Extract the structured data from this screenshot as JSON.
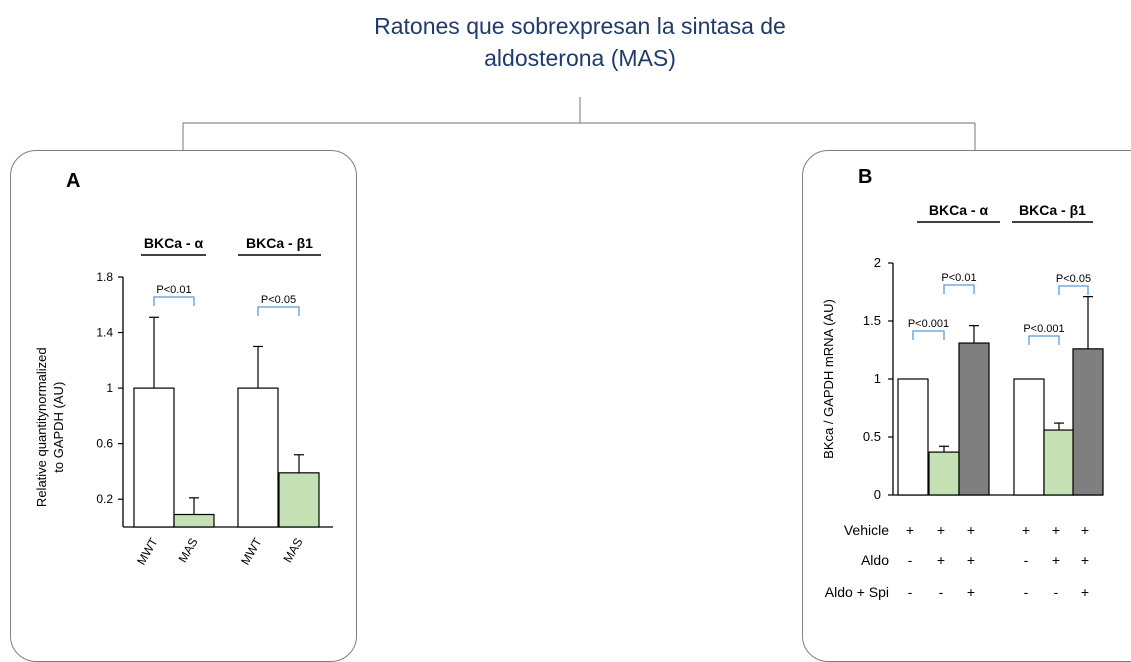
{
  "title_line1": "Ratones que sobrexpresan la sintasa de",
  "title_line2": "aldosterona (MAS)",
  "colors": {
    "title": "#1f3a6b",
    "bracket": "#5b9bd5",
    "green": "#c5e0b4",
    "gray": "#7f7f7f",
    "white": "#ffffff"
  },
  "chart_data": [
    {
      "type": "bar",
      "panel_letter": "A",
      "ylabel_line1": "Relative quantitynormalized",
      "ylabel_line2": "to GAPDH (AU)",
      "ylim": [
        0,
        1.8
      ],
      "yticks": [
        "0.2",
        "0.6",
        "1",
        "1.4",
        "1.8"
      ],
      "groups": [
        "BKCa - α",
        "BKCa - β1"
      ],
      "categories": [
        "MWT",
        "MAS",
        "MWT",
        "MAS"
      ],
      "values": [
        1.0,
        0.09,
        1.0,
        0.39
      ],
      "errors": [
        0.51,
        0.12,
        0.3,
        0.13
      ],
      "fills": [
        "white",
        "green",
        "white",
        "green"
      ],
      "pvalues": [
        "P<0.01",
        "P<0.05"
      ]
    },
    {
      "type": "bar",
      "panel_letter": "B",
      "ylabel": "BKca / GAPDH mRNA (AU)",
      "ylim": [
        0,
        2
      ],
      "yticks": [
        "0",
        "0.5",
        "1",
        "1.5",
        "2"
      ],
      "groups": [
        "BKCa - α",
        "BKCa - β1"
      ],
      "values": [
        1.0,
        0.37,
        1.31,
        1.0,
        0.56,
        1.26
      ],
      "errors": [
        0,
        0.05,
        0.15,
        0,
        0.06,
        0.45
      ],
      "fills": [
        "white",
        "green",
        "gray",
        "white",
        "green",
        "gray"
      ],
      "pvalues": [
        "P<0.001",
        "P<0.01",
        "P<0.001",
        "P<0.05"
      ],
      "treatments": [
        {
          "label": "Vehicle",
          "signs": [
            "+",
            "+",
            "+",
            "+",
            "+",
            "+"
          ]
        },
        {
          "label": "Aldo",
          "signs": [
            "-",
            "+",
            "+",
            "-",
            "+",
            "+"
          ]
        },
        {
          "label": "Aldo + Spi",
          "signs": [
            "-",
            "-",
            "+",
            "-",
            "-",
            "+"
          ]
        }
      ]
    }
  ]
}
